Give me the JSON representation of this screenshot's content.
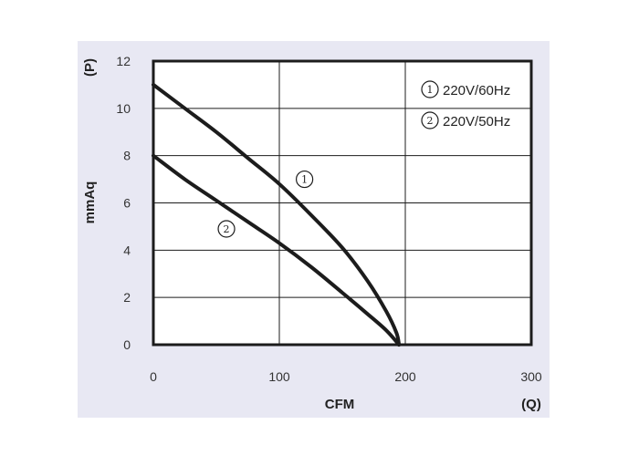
{
  "chart_data": {
    "type": "line",
    "xlabel": "CFM",
    "ylabel": "mmAq",
    "x_unit_label": "(Q)",
    "y_unit_label": "(P)",
    "xlim": [
      0,
      300
    ],
    "ylim": [
      0,
      12
    ],
    "x_ticks": [
      0,
      100,
      200,
      300
    ],
    "y_ticks": [
      0,
      2,
      4,
      6,
      8,
      10,
      12
    ],
    "grid": true,
    "legend_placement": "top-right",
    "colors": {
      "panel_background": "#e8e8f3",
      "plot_background": "#ffffff",
      "line": "#1c1c1c",
      "grid": "#1c1c1c"
    },
    "series": [
      {
        "marker": "1",
        "name": "220V/60Hz",
        "x": [
          0,
          25,
          50,
          75,
          100,
          125,
          150,
          170,
          185,
          193,
          195
        ],
        "y": [
          11.0,
          10.0,
          9.0,
          7.9,
          6.8,
          5.5,
          4.1,
          2.7,
          1.4,
          0.5,
          0
        ]
      },
      {
        "marker": "2",
        "name": "220V/50Hz",
        "x": [
          0,
          25,
          50,
          75,
          100,
          125,
          150,
          170,
          185,
          195
        ],
        "y": [
          8.0,
          7.0,
          6.1,
          5.2,
          4.3,
          3.3,
          2.2,
          1.3,
          0.6,
          0
        ]
      }
    ],
    "annotations": [
      {
        "text": "1",
        "x": 120,
        "y": 7.0
      },
      {
        "text": "2",
        "x": 58,
        "y": 4.9
      }
    ]
  }
}
